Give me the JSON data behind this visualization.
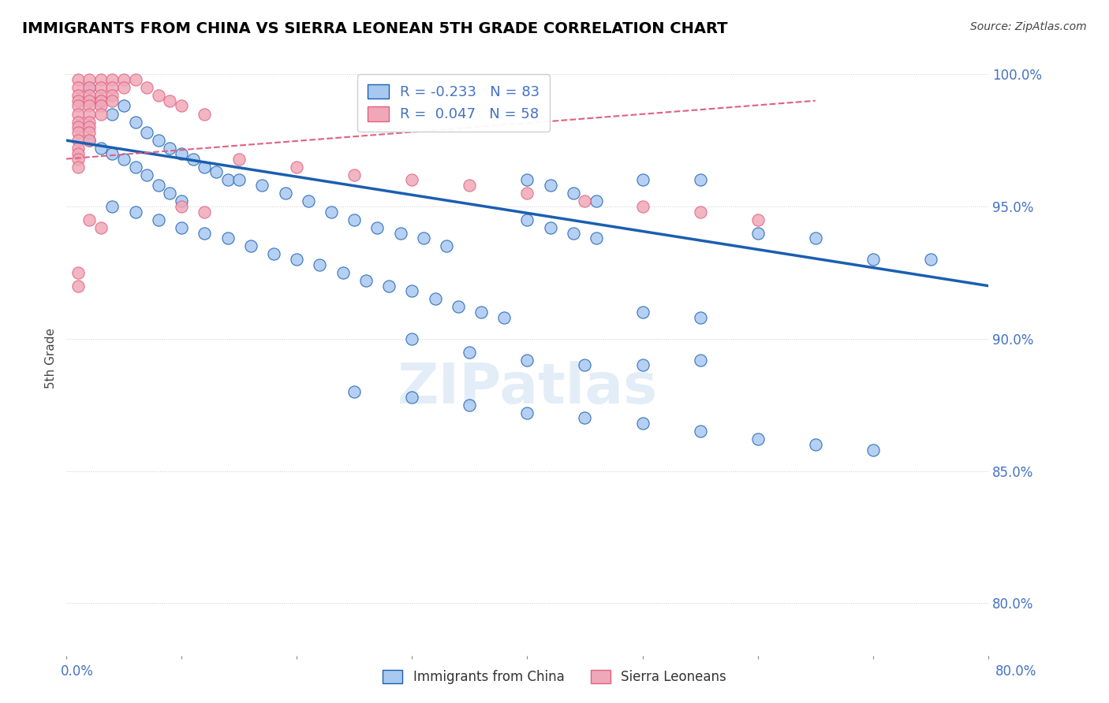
{
  "title": "IMMIGRANTS FROM CHINA VS SIERRA LEONEAN 5TH GRADE CORRELATION CHART",
  "source": "Source: ZipAtlas.com",
  "ylabel": "5th Grade",
  "ylabel_right_ticks": [
    80.0,
    85.0,
    90.0,
    95.0,
    100.0
  ],
  "xlim": [
    0.0,
    0.8
  ],
  "ylim": [
    0.78,
    1.005
  ],
  "blue_R": -0.233,
  "blue_N": 83,
  "pink_R": 0.047,
  "pink_N": 58,
  "blue_color": "#a8c8f0",
  "pink_color": "#f0a8b8",
  "blue_line_color": "#1a5fb0",
  "pink_line_color": "#e06080",
  "blue_scatter": [
    [
      0.02,
      0.995
    ],
    [
      0.03,
      0.99
    ],
    [
      0.04,
      0.985
    ],
    [
      0.05,
      0.988
    ],
    [
      0.06,
      0.982
    ],
    [
      0.07,
      0.978
    ],
    [
      0.08,
      0.975
    ],
    [
      0.09,
      0.972
    ],
    [
      0.1,
      0.97
    ],
    [
      0.11,
      0.968
    ],
    [
      0.12,
      0.965
    ],
    [
      0.13,
      0.963
    ],
    [
      0.14,
      0.96
    ],
    [
      0.02,
      0.975
    ],
    [
      0.03,
      0.972
    ],
    [
      0.04,
      0.97
    ],
    [
      0.05,
      0.968
    ],
    [
      0.06,
      0.965
    ],
    [
      0.07,
      0.962
    ],
    [
      0.08,
      0.958
    ],
    [
      0.09,
      0.955
    ],
    [
      0.1,
      0.952
    ],
    [
      0.04,
      0.95
    ],
    [
      0.06,
      0.948
    ],
    [
      0.08,
      0.945
    ],
    [
      0.1,
      0.942
    ],
    [
      0.12,
      0.94
    ],
    [
      0.14,
      0.938
    ],
    [
      0.16,
      0.935
    ],
    [
      0.18,
      0.932
    ],
    [
      0.2,
      0.93
    ],
    [
      0.22,
      0.928
    ],
    [
      0.24,
      0.925
    ],
    [
      0.26,
      0.922
    ],
    [
      0.28,
      0.92
    ],
    [
      0.3,
      0.918
    ],
    [
      0.32,
      0.915
    ],
    [
      0.34,
      0.912
    ],
    [
      0.36,
      0.91
    ],
    [
      0.38,
      0.908
    ],
    [
      0.15,
      0.96
    ],
    [
      0.17,
      0.958
    ],
    [
      0.19,
      0.955
    ],
    [
      0.21,
      0.952
    ],
    [
      0.23,
      0.948
    ],
    [
      0.25,
      0.945
    ],
    [
      0.27,
      0.942
    ],
    [
      0.29,
      0.94
    ],
    [
      0.31,
      0.938
    ],
    [
      0.33,
      0.935
    ],
    [
      0.4,
      0.96
    ],
    [
      0.42,
      0.958
    ],
    [
      0.44,
      0.955
    ],
    [
      0.46,
      0.952
    ],
    [
      0.5,
      0.96
    ],
    [
      0.55,
      0.96
    ],
    [
      0.6,
      0.94
    ],
    [
      0.65,
      0.938
    ],
    [
      0.7,
      0.93
    ],
    [
      0.75,
      0.93
    ],
    [
      0.4,
      0.945
    ],
    [
      0.42,
      0.942
    ],
    [
      0.44,
      0.94
    ],
    [
      0.46,
      0.938
    ],
    [
      0.5,
      0.91
    ],
    [
      0.55,
      0.908
    ],
    [
      0.3,
      0.9
    ],
    [
      0.35,
      0.895
    ],
    [
      0.4,
      0.892
    ],
    [
      0.45,
      0.89
    ],
    [
      0.5,
      0.89
    ],
    [
      0.55,
      0.892
    ],
    [
      0.25,
      0.88
    ],
    [
      0.3,
      0.878
    ],
    [
      0.35,
      0.875
    ],
    [
      0.4,
      0.872
    ],
    [
      0.45,
      0.87
    ],
    [
      0.5,
      0.868
    ],
    [
      0.55,
      0.865
    ],
    [
      0.6,
      0.862
    ],
    [
      0.65,
      0.86
    ],
    [
      0.7,
      0.858
    ]
  ],
  "pink_scatter": [
    [
      0.01,
      0.998
    ],
    [
      0.01,
      0.995
    ],
    [
      0.01,
      0.992
    ],
    [
      0.01,
      0.99
    ],
    [
      0.01,
      0.988
    ],
    [
      0.01,
      0.985
    ],
    [
      0.01,
      0.982
    ],
    [
      0.01,
      0.98
    ],
    [
      0.01,
      0.978
    ],
    [
      0.01,
      0.975
    ],
    [
      0.01,
      0.972
    ],
    [
      0.01,
      0.97
    ],
    [
      0.01,
      0.968
    ],
    [
      0.01,
      0.965
    ],
    [
      0.02,
      0.998
    ],
    [
      0.02,
      0.995
    ],
    [
      0.02,
      0.992
    ],
    [
      0.02,
      0.99
    ],
    [
      0.02,
      0.988
    ],
    [
      0.02,
      0.985
    ],
    [
      0.02,
      0.982
    ],
    [
      0.02,
      0.98
    ],
    [
      0.02,
      0.978
    ],
    [
      0.02,
      0.975
    ],
    [
      0.03,
      0.998
    ],
    [
      0.03,
      0.995
    ],
    [
      0.03,
      0.992
    ],
    [
      0.03,
      0.99
    ],
    [
      0.03,
      0.988
    ],
    [
      0.03,
      0.985
    ],
    [
      0.04,
      0.998
    ],
    [
      0.04,
      0.995
    ],
    [
      0.04,
      0.992
    ],
    [
      0.04,
      0.99
    ],
    [
      0.05,
      0.998
    ],
    [
      0.05,
      0.995
    ],
    [
      0.06,
      0.998
    ],
    [
      0.07,
      0.995
    ],
    [
      0.08,
      0.992
    ],
    [
      0.09,
      0.99
    ],
    [
      0.1,
      0.988
    ],
    [
      0.12,
      0.985
    ],
    [
      0.1,
      0.95
    ],
    [
      0.12,
      0.948
    ],
    [
      0.02,
      0.945
    ],
    [
      0.03,
      0.942
    ],
    [
      0.01,
      0.925
    ],
    [
      0.01,
      0.92
    ],
    [
      0.15,
      0.968
    ],
    [
      0.2,
      0.965
    ],
    [
      0.25,
      0.962
    ],
    [
      0.3,
      0.96
    ],
    [
      0.35,
      0.958
    ],
    [
      0.4,
      0.955
    ],
    [
      0.45,
      0.952
    ],
    [
      0.5,
      0.95
    ],
    [
      0.55,
      0.948
    ],
    [
      0.6,
      0.945
    ]
  ],
  "blue_trend_x": [
    0.0,
    0.8
  ],
  "blue_trend_y": [
    0.975,
    0.92
  ],
  "pink_trend_x": [
    0.0,
    0.65
  ],
  "pink_trend_y": [
    0.968,
    0.99
  ],
  "watermark": "ZIPatlas"
}
